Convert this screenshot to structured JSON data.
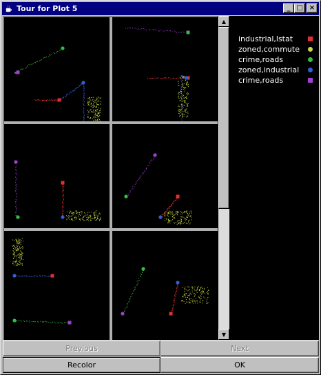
{
  "window": {
    "title": "Tour for Plot 5",
    "minimize_glyph": "_",
    "maximize_glyph": "□",
    "close_glyph": "×"
  },
  "legend": [
    {
      "label": "industrial,lstat",
      "color": "#e03030",
      "shape": "square"
    },
    {
      "label": "zoned,commute",
      "color": "#c8d840",
      "shape": "circle"
    },
    {
      "label": "crime,roads",
      "color": "#30c040",
      "shape": "circle"
    },
    {
      "label": "zoned,industrial",
      "color": "#3060e0",
      "shape": "circle"
    },
    {
      "label": "crime,roads",
      "color": "#a040d0",
      "shape": "square"
    }
  ],
  "buttons": {
    "previous": "Previous",
    "next": "Next",
    "recolor": "Recolor",
    "ok": "OK"
  },
  "scrollbar": {
    "up_glyph": "▲",
    "down_glyph": "▼"
  }
}
